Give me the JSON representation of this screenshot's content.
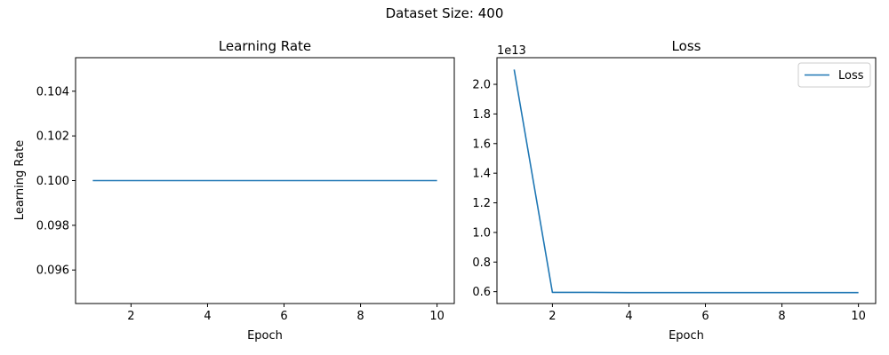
{
  "figure": {
    "suptitle": "Dataset Size: 400"
  },
  "chart_data": [
    {
      "type": "line",
      "title": "Learning Rate",
      "xlabel": "Epoch",
      "ylabel": "Learning Rate",
      "x": [
        1,
        2,
        3,
        4,
        5,
        6,
        7,
        8,
        9,
        10
      ],
      "series": [
        {
          "values": [
            0.1,
            0.1,
            0.1,
            0.1,
            0.1,
            0.1,
            0.1,
            0.1,
            0.1,
            0.1
          ],
          "color": "#1f77b4"
        }
      ],
      "xlim": [
        0.55,
        10.45
      ],
      "ylim": [
        0.0945,
        0.1055
      ],
      "xticks": [
        2,
        4,
        6,
        8,
        10
      ],
      "xtick_labels": [
        "2",
        "4",
        "6",
        "8",
        "10"
      ],
      "yticks": [
        0.096,
        0.098,
        0.1,
        0.102,
        0.104
      ],
      "ytick_labels": [
        "0.096",
        "0.098",
        "0.100",
        "0.102",
        "0.104"
      ],
      "legend": null,
      "grid": false
    },
    {
      "type": "line",
      "title": "Loss",
      "xlabel": "Epoch",
      "ylabel": "",
      "y_offset_label": "1e13",
      "x": [
        1,
        2,
        3,
        4,
        5,
        6,
        7,
        8,
        9,
        10
      ],
      "series": [
        {
          "name": "Loss",
          "values": [
            21000000000000.0,
            5950000000000.0,
            5950000000000.0,
            5940000000000.0,
            5940000000000.0,
            5940000000000.0,
            5940000000000.0,
            5940000000000.0,
            5940000000000.0,
            5940000000000.0
          ],
          "color": "#1f77b4"
        }
      ],
      "xlim": [
        0.55,
        10.45
      ],
      "ylim": [
        5200000000000.0,
        21800000000000.0
      ],
      "xticks": [
        2,
        4,
        6,
        8,
        10
      ],
      "xtick_labels": [
        "2",
        "4",
        "6",
        "8",
        "10"
      ],
      "yticks": [
        6000000000000.0,
        8000000000000.0,
        10000000000000.0,
        12000000000000.0,
        14000000000000.0,
        16000000000000.0,
        18000000000000.0,
        20000000000000.0
      ],
      "ytick_labels": [
        "0.6",
        "0.8",
        "1.0",
        "1.2",
        "1.4",
        "1.6",
        "1.8",
        "2.0"
      ],
      "legend": "upper right",
      "grid": false
    }
  ]
}
